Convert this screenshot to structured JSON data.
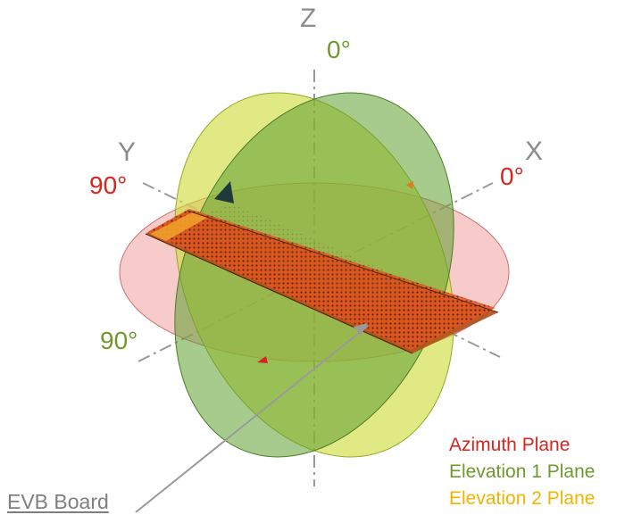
{
  "axes": {
    "z": "Z",
    "y": "Y",
    "x": "X"
  },
  "angles": {
    "z_zero": "0°",
    "y_ninety": "90°",
    "x_zero": "0°",
    "elev_ninety": "90°"
  },
  "legend": {
    "azimuth": "Azimuth Plane",
    "elevation1": "Elevation 1 Plane",
    "elevation2": "Elevation 2 Plane"
  },
  "board_label": "EVB Board",
  "colors": {
    "azimuth": "#d7241f",
    "elevation1": "#6f9a2b",
    "elevation2": "#f2b400",
    "axis": "#9a9a9a",
    "board": "#e8541c"
  }
}
